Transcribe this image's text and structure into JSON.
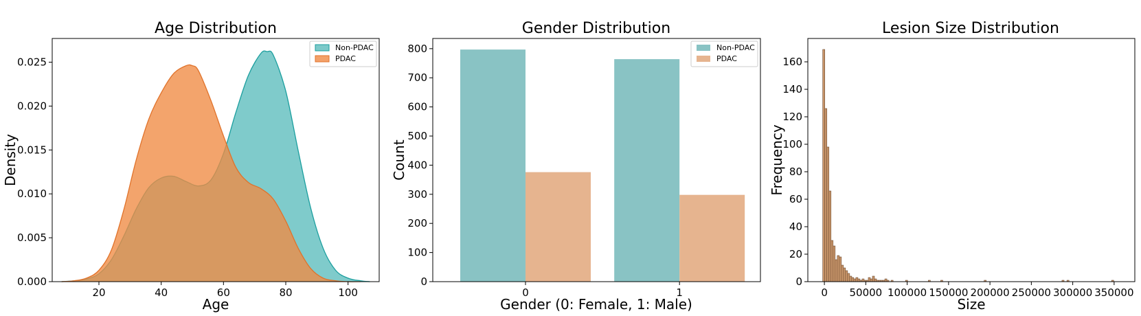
{
  "colors": {
    "non_pdac_fill": "#5bbcbc",
    "non_pdac_stroke": "#1a9e9e",
    "pdac_fill": "#f08a43",
    "pdac_stroke": "#e0722a",
    "bar_non_pdac": "#89c3c4",
    "bar_pdac": "#e6b48f",
    "hist_fill": "#c8956a",
    "hist_stroke": "#6b4a30"
  },
  "chart_data": [
    {
      "type": "area",
      "title": "Age Distribution",
      "xlabel": "Age",
      "ylabel": "Density",
      "xlim": [
        5,
        110
      ],
      "ylim": [
        0,
        0.0277
      ],
      "xticks": [
        "20",
        "40",
        "60",
        "80",
        "100"
      ],
      "yticks": [
        "0.000",
        "0.005",
        "0.010",
        "0.015",
        "0.020",
        "0.025"
      ],
      "legend": {
        "position": "top-right",
        "entries": [
          "Non-PDAC",
          "PDAC"
        ]
      },
      "series": [
        {
          "name": "Non-PDAC",
          "x": [
            8,
            12,
            16,
            20,
            24,
            28,
            32,
            36,
            40,
            44,
            48,
            52,
            56,
            60,
            64,
            68,
            72,
            74,
            76,
            80,
            84,
            88,
            92,
            96,
            100,
            104,
            107
          ],
          "y": [
            0.0,
            0.0001,
            0.0003,
            0.0009,
            0.0025,
            0.0052,
            0.0083,
            0.0107,
            0.0118,
            0.012,
            0.0114,
            0.0109,
            0.0116,
            0.0146,
            0.0193,
            0.0235,
            0.026,
            0.0262,
            0.0258,
            0.0217,
            0.0149,
            0.0084,
            0.0038,
            0.0013,
            0.0004,
            0.0001,
            0.0
          ]
        },
        {
          "name": "PDAC",
          "x": [
            8,
            12,
            16,
            20,
            24,
            28,
            32,
            36,
            40,
            44,
            48,
            50,
            52,
            56,
            60,
            64,
            68,
            72,
            76,
            80,
            84,
            88,
            92,
            96,
            100,
            104
          ],
          "y": [
            0.0,
            0.0001,
            0.0004,
            0.0013,
            0.0036,
            0.0082,
            0.0139,
            0.0185,
            0.0215,
            0.0237,
            0.0246,
            0.0246,
            0.024,
            0.0206,
            0.0166,
            0.013,
            0.0113,
            0.0106,
            0.0094,
            0.0069,
            0.0038,
            0.0015,
            0.0004,
            0.0001,
            0.0,
            0.0
          ]
        }
      ]
    },
    {
      "type": "bar",
      "title": "Gender Distribution",
      "xlabel": "Gender (0: Female, 1: Male)",
      "ylabel": "Count",
      "categories": [
        "0",
        "1"
      ],
      "ylim": [
        0,
        835
      ],
      "yticks": [
        "0",
        "100",
        "200",
        "300",
        "400",
        "500",
        "600",
        "700",
        "800"
      ],
      "legend": {
        "position": "top-right",
        "entries": [
          "Non-PDAC",
          "PDAC"
        ]
      },
      "series": [
        {
          "name": "Non-PDAC",
          "values": [
            797,
            764
          ]
        },
        {
          "name": "PDAC",
          "values": [
            376,
            298
          ]
        }
      ]
    },
    {
      "type": "bar",
      "title": "Lesion Size Distribution",
      "xlabel": "Size",
      "ylabel": "Frequency",
      "xlim": [
        -20000,
        375000
      ],
      "ylim": [
        0,
        177
      ],
      "xticks": [
        "0",
        "50000",
        "100000",
        "150000",
        "200000",
        "250000",
        "300000",
        "350000"
      ],
      "yticks": [
        "0",
        "20",
        "40",
        "60",
        "80",
        "100",
        "120",
        "140",
        "160"
      ],
      "bin_start": -2000,
      "bin_width": 2500,
      "counts": [
        169,
        126,
        98,
        66,
        30,
        26,
        16,
        19,
        18,
        12,
        10,
        8,
        6,
        4,
        3,
        2,
        3,
        2,
        1,
        2,
        1,
        1,
        3,
        2,
        4,
        2,
        1,
        1,
        1,
        1,
        2,
        1,
        0,
        1,
        0,
        0,
        0,
        0,
        0,
        0,
        1,
        0,
        0,
        0,
        0,
        0,
        0,
        0,
        0,
        0,
        0,
        1,
        0,
        0,
        0,
        0,
        0,
        1,
        0,
        0,
        0,
        0,
        0,
        0,
        0,
        0,
        0,
        0,
        0,
        0,
        0,
        0,
        0,
        0,
        0,
        0,
        0,
        0,
        1
      ],
      "extra_bins": [
        {
          "x": 287000,
          "count": 1
        },
        {
          "x": 293000,
          "count": 1
        },
        {
          "x": 347000,
          "count": 1
        }
      ]
    }
  ]
}
